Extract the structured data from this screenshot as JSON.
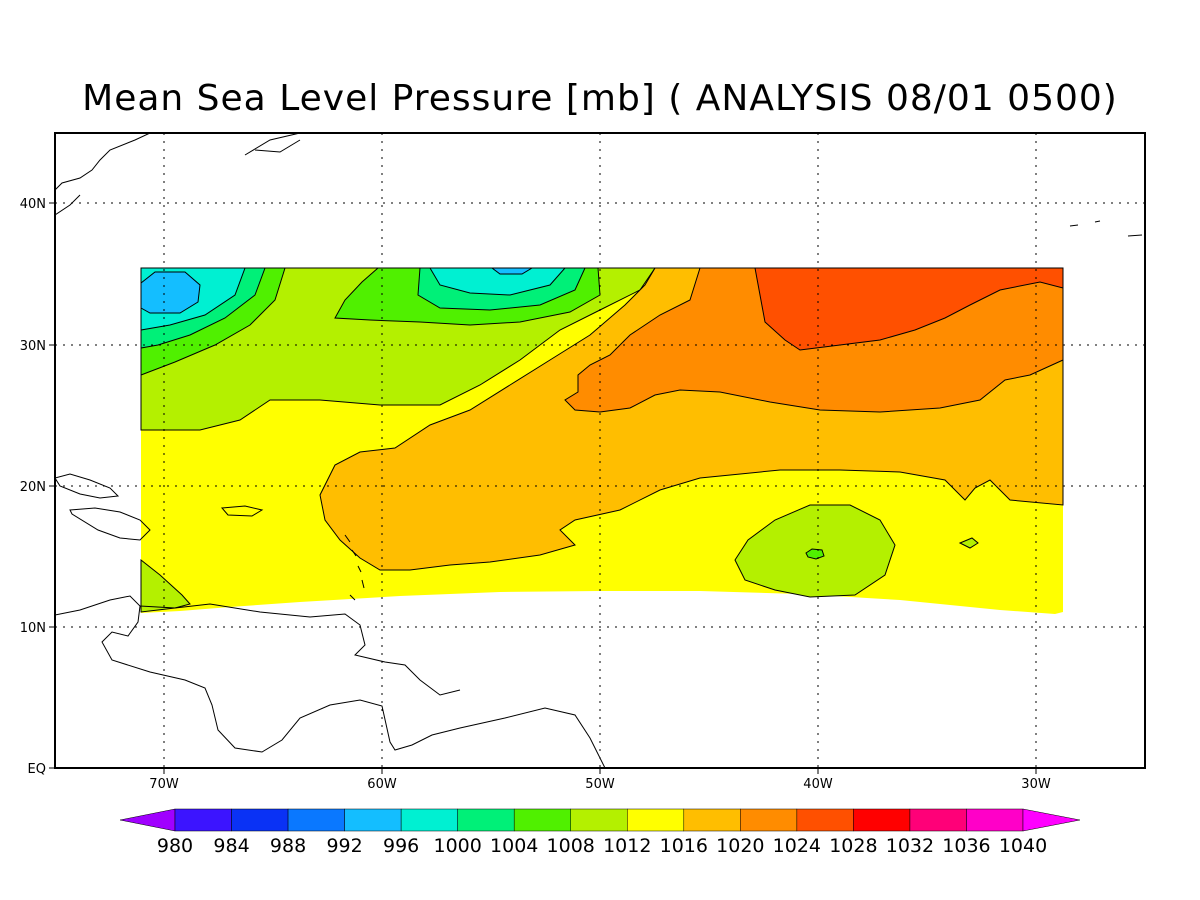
{
  "map": {
    "title": "Mean Sea Level Pressure [mb] ( ANALYSIS 08/01 0500)",
    "lat_labels": [
      "40N",
      "30N",
      "20N",
      "10N",
      "EQ"
    ],
    "lon_labels": [
      "70W",
      "60W",
      "50W",
      "40W",
      "30W"
    ],
    "lon_range": [
      -75,
      -25
    ],
    "lat_range": [
      0,
      45
    ],
    "grid": "dotted"
  },
  "colorbar": {
    "levels": [
      "980",
      "984",
      "988",
      "992",
      "996",
      "1000",
      "1004",
      "1008",
      "1012",
      "1016",
      "1020",
      "1024",
      "1028",
      "1032",
      "1036",
      "1040"
    ],
    "colors": [
      "#a000ff",
      "#3c14ff",
      "#0a32f5",
      "#0a78ff",
      "#14beff",
      "#00f0d2",
      "#00f078",
      "#50f000",
      "#b4f000",
      "#ffff00",
      "#ffbe00",
      "#ff8c00",
      "#ff5000",
      "#ff0000",
      "#ff0078",
      "#ff00c8",
      "#ff00ff"
    ]
  }
}
